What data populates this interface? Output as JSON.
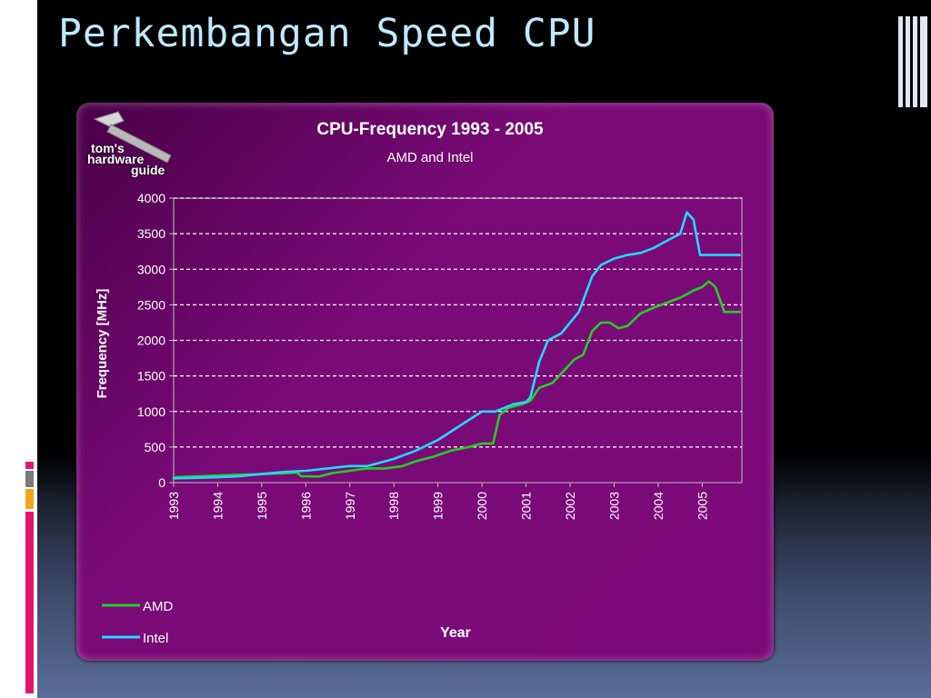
{
  "slide": {
    "title": "Perkembangan Speed CPU"
  },
  "logo": {
    "line1": "tom's",
    "line2": "hardware",
    "line3": "guide"
  },
  "colors": {
    "amd": "#22d022",
    "intel": "#22d8ff",
    "title": "#bfe9ff",
    "plot_bg": "#7a0a78"
  },
  "chart_data": {
    "type": "line",
    "title": "CPU-Frequency 1993 - 2005",
    "subtitle": "AMD and Intel",
    "xlabel": "Year",
    "ylabel": "Frequency [MHz]",
    "xlim": [
      1993,
      2005.9
    ],
    "ylim": [
      0,
      4000
    ],
    "yticks": [
      "0",
      "500",
      "1000",
      "1500",
      "2000",
      "2500",
      "3000",
      "3500",
      "4000"
    ],
    "xticks": [
      "1993",
      "1994",
      "1995",
      "1996",
      "1997",
      "1998",
      "1999",
      "2000",
      "2001",
      "2002",
      "2003",
      "2004",
      "2005"
    ],
    "grid": "horizontal dashed",
    "legend_position": "bottom-left",
    "series": [
      {
        "name": "AMD",
        "color": "#22d022",
        "points": [
          [
            1993.0,
            75
          ],
          [
            1993.6,
            90
          ],
          [
            1994.0,
            100
          ],
          [
            1994.5,
            110
          ],
          [
            1995.0,
            120
          ],
          [
            1995.5,
            130
          ],
          [
            1995.8,
            140
          ],
          [
            1995.9,
            90
          ],
          [
            1996.3,
            85
          ],
          [
            1996.6,
            133
          ],
          [
            1997.0,
            166
          ],
          [
            1997.4,
            200
          ],
          [
            1997.8,
            200
          ],
          [
            1998.2,
            233
          ],
          [
            1998.5,
            300
          ],
          [
            1998.9,
            366
          ],
          [
            1999.3,
            450
          ],
          [
            1999.7,
            500
          ],
          [
            2000.0,
            550
          ],
          [
            2000.25,
            550
          ],
          [
            2000.4,
            950
          ],
          [
            2000.6,
            1050
          ],
          [
            2000.9,
            1100
          ],
          [
            2001.1,
            1150
          ],
          [
            2001.3,
            1333
          ],
          [
            2001.6,
            1400
          ],
          [
            2001.9,
            1600
          ],
          [
            2002.1,
            1733
          ],
          [
            2002.3,
            1800
          ],
          [
            2002.5,
            2130
          ],
          [
            2002.7,
            2250
          ],
          [
            2002.9,
            2250
          ],
          [
            2003.1,
            2170
          ],
          [
            2003.3,
            2200
          ],
          [
            2003.6,
            2380
          ],
          [
            2003.9,
            2460
          ],
          [
            2004.2,
            2530
          ],
          [
            2004.5,
            2600
          ],
          [
            2004.8,
            2700
          ],
          [
            2005.0,
            2750
          ],
          [
            2005.15,
            2830
          ],
          [
            2005.3,
            2750
          ],
          [
            2005.5,
            2400
          ],
          [
            2005.85,
            2400
          ]
        ]
      },
      {
        "name": "Intel",
        "color": "#22d8ff",
        "points": [
          [
            1993.0,
            60
          ],
          [
            1993.5,
            66
          ],
          [
            1994.0,
            75
          ],
          [
            1994.5,
            90
          ],
          [
            1995.0,
            120
          ],
          [
            1995.5,
            150
          ],
          [
            1996.0,
            166
          ],
          [
            1996.5,
            200
          ],
          [
            1997.0,
            233
          ],
          [
            1997.4,
            233
          ],
          [
            1997.6,
            266
          ],
          [
            1998.0,
            333
          ],
          [
            1998.5,
            450
          ],
          [
            1999.0,
            600
          ],
          [
            1999.5,
            800
          ],
          [
            2000.0,
            1000
          ],
          [
            2000.3,
            1000
          ],
          [
            2000.7,
            1100
          ],
          [
            2001.0,
            1133
          ],
          [
            2001.1,
            1200
          ],
          [
            2001.3,
            1700
          ],
          [
            2001.5,
            2000
          ],
          [
            2001.8,
            2100
          ],
          [
            2002.2,
            2400
          ],
          [
            2002.5,
            2900
          ],
          [
            2002.7,
            3060
          ],
          [
            2003.0,
            3150
          ],
          [
            2003.3,
            3200
          ],
          [
            2003.6,
            3230
          ],
          [
            2003.9,
            3300
          ],
          [
            2004.2,
            3400
          ],
          [
            2004.5,
            3500
          ],
          [
            2004.65,
            3800
          ],
          [
            2004.8,
            3700
          ],
          [
            2004.95,
            3200
          ],
          [
            2005.1,
            3200
          ],
          [
            2005.85,
            3200
          ]
        ]
      }
    ]
  }
}
